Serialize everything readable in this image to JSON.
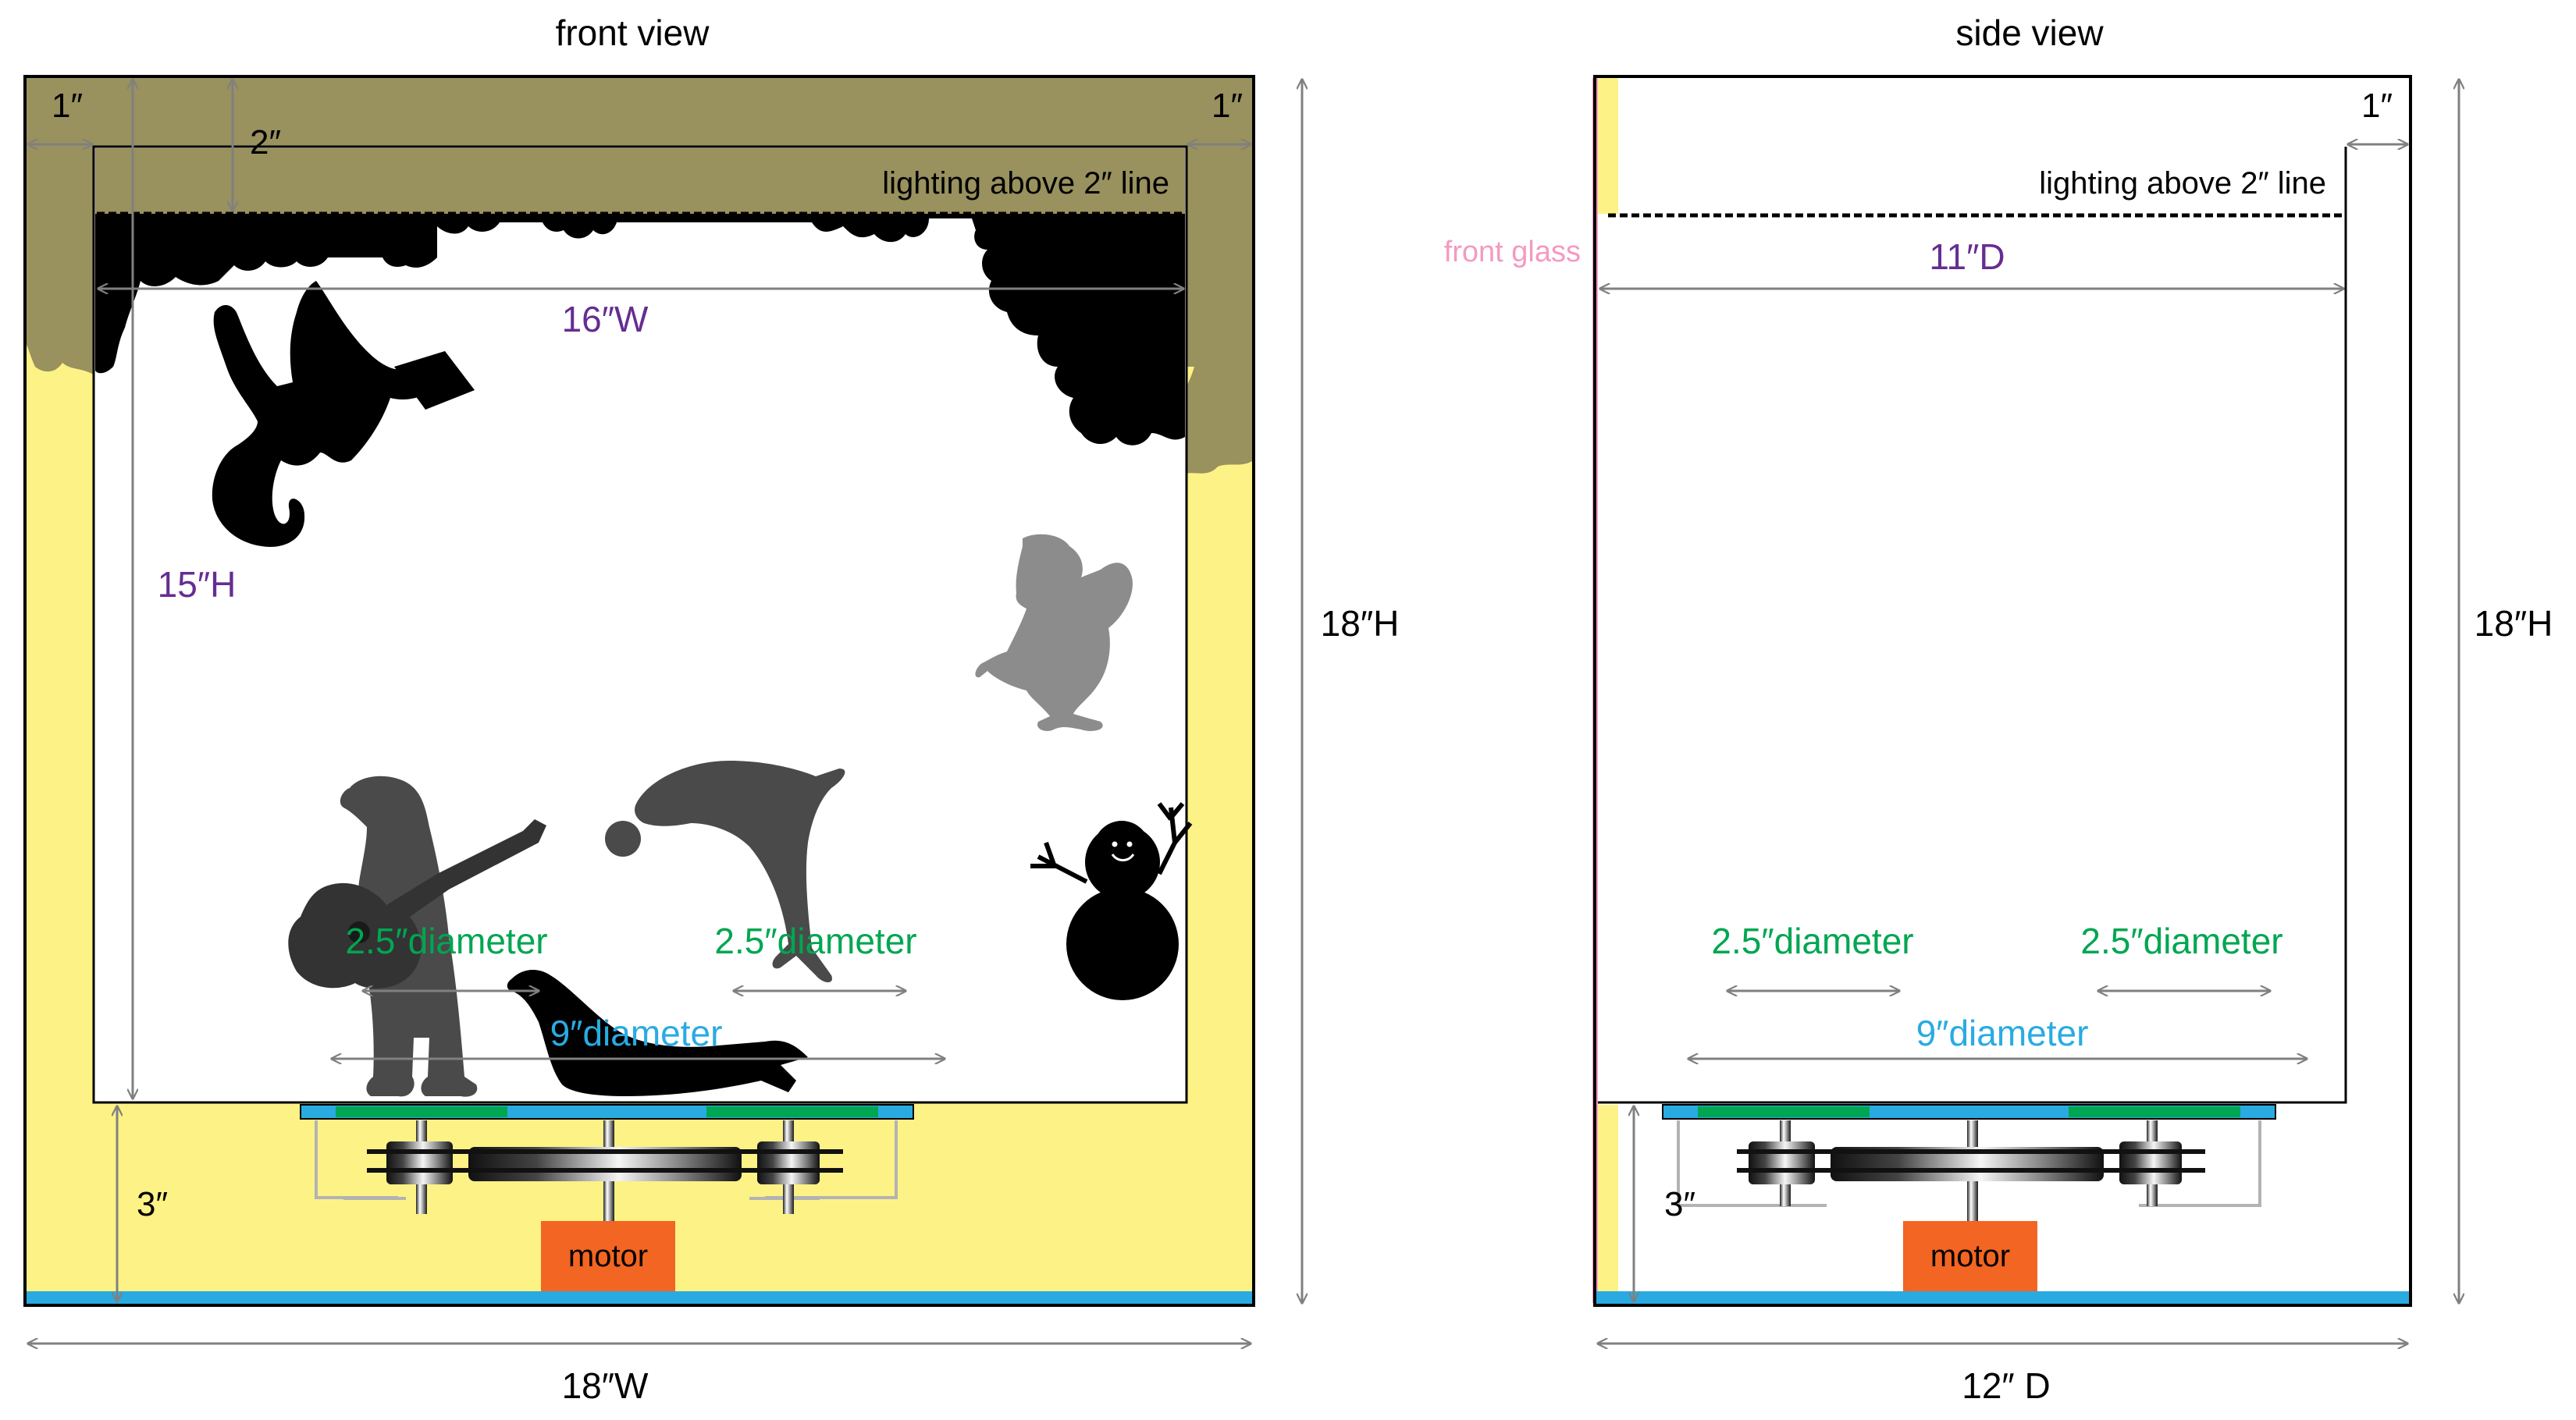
{
  "colors": {
    "olive": "#99915e",
    "yellow": "#fdf285",
    "blue": "#29abe2",
    "green": "#00a651",
    "purple": "#662d91",
    "pink": "#f49ac1",
    "orange": "#f26522",
    "gray_dim": "#808080",
    "silhouette_dark": "#000000",
    "silhouette_mid": "#4a4a4a",
    "silhouette_light": "#8c8c8c"
  },
  "front": {
    "title": "front view",
    "lighting": "lighting above 2″ line",
    "wall_left": "1″",
    "wall_right": "1″",
    "top_band": "2″",
    "inner_width": "16″W",
    "inner_height": "15″H",
    "outer_height": "18″H",
    "outer_width": "18″W",
    "base": "3″",
    "gear_left": "2.5″diameter",
    "gear_right": "2.5″diameter",
    "turntable": "9″diameter",
    "motor": "motor"
  },
  "side": {
    "title": "side view",
    "lighting": "lighting above 2″ line",
    "wall_right": "1″",
    "front_glass": "front glass",
    "inner_depth": "11″D",
    "outer_height": "18″H",
    "outer_depth": "12″ D",
    "base": "3″",
    "gear_left": "2.5″diameter",
    "gear_right": "2.5″diameter",
    "turntable": "9″diameter",
    "motor": "motor"
  }
}
